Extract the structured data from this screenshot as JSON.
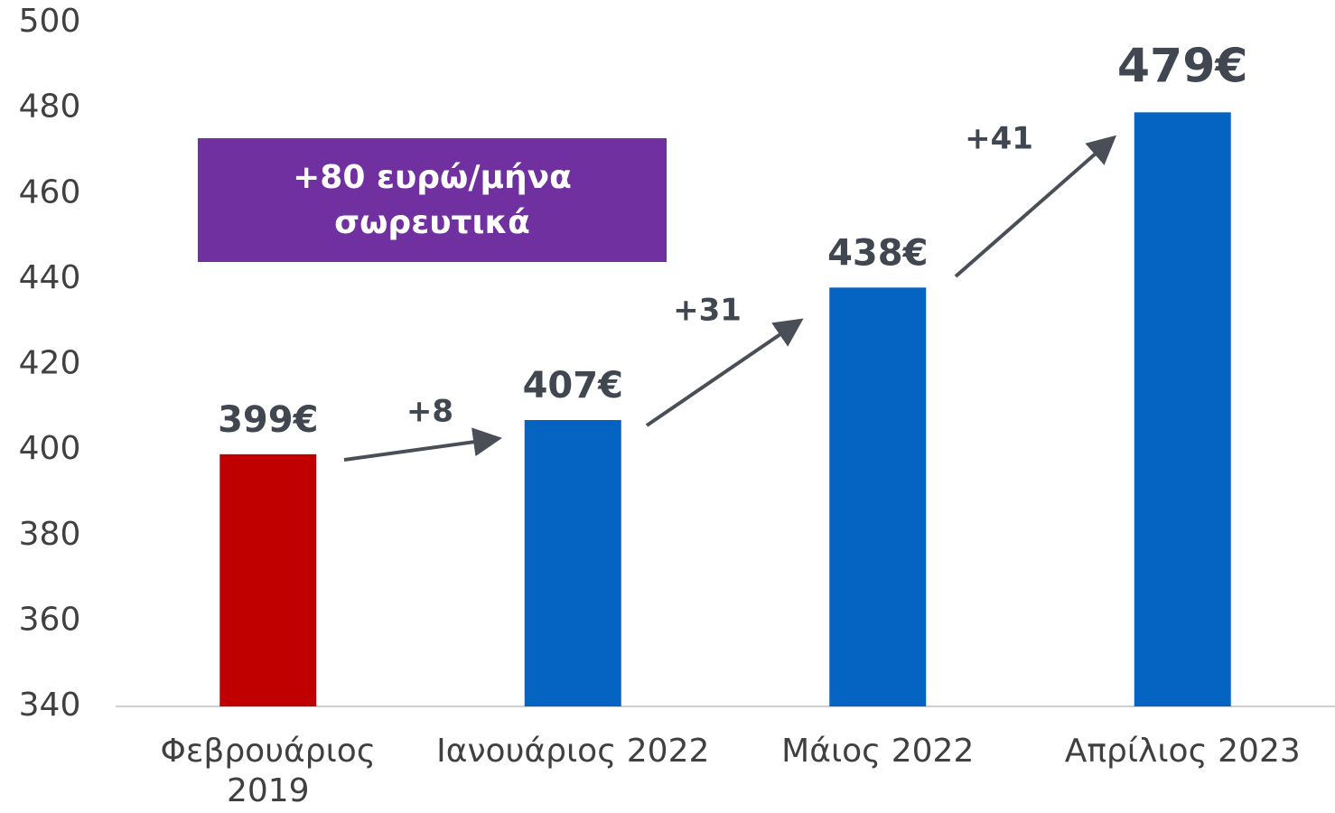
{
  "chart_data": {
    "type": "bar",
    "categories": [
      "Φεβρουάριος 2019",
      "Ιανουάριος 2022",
      "Μάιος 2022",
      "Απρίλιος 2023"
    ],
    "values": [
      399,
      407,
      438,
      479
    ],
    "value_labels": [
      "399€",
      "407€",
      "438€",
      "479€"
    ],
    "colors": [
      "#c00000",
      "#0563c1",
      "#0563c1",
      "#0563c1"
    ],
    "ylim": [
      340,
      500
    ],
    "yticks": [
      340,
      360,
      380,
      400,
      420,
      440,
      460,
      480,
      500
    ],
    "grid": false,
    "annotations": [
      "+8",
      "+31",
      "+41"
    ],
    "callout": "+80 ευρώ/μήνα σωρευτικά"
  }
}
